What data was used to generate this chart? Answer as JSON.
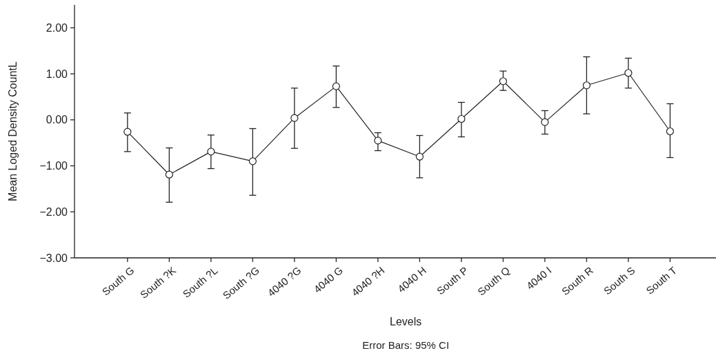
{
  "chart_data": {
    "type": "line",
    "xlabel": "Levels",
    "ylabel": "Mean Loged Density CountL",
    "annotations": [
      "Error Bars: 95% CI"
    ],
    "categories": [
      "South G",
      "South ?K",
      "South ?L",
      "South ?G",
      "4040 ?G",
      "4040 G",
      "4040 ?H",
      "4040 H",
      "South P",
      "South Q",
      "4040 I",
      "South R",
      "South S",
      "South T"
    ],
    "series": [
      {
        "color": "#222222",
        "values": [
          -0.26,
          -1.19,
          -0.69,
          -0.9,
          0.04,
          0.73,
          -0.45,
          -0.8,
          0.02,
          0.84,
          -0.05,
          0.75,
          1.02,
          -0.25
        ],
        "errors": [
          [
            -0.69,
            0.15
          ],
          [
            -1.79,
            -0.61
          ],
          [
            -1.06,
            -0.33
          ],
          [
            -1.64,
            -0.19
          ],
          [
            -0.62,
            0.69
          ],
          [
            0.27,
            1.17
          ],
          [
            -0.67,
            -0.28
          ],
          [
            -1.26,
            -0.34
          ],
          [
            -0.37,
            0.38
          ],
          [
            0.64,
            1.06
          ],
          [
            -0.31,
            0.2
          ],
          [
            0.13,
            1.37
          ],
          [
            0.69,
            1.34
          ],
          [
            -0.82,
            0.35
          ]
        ]
      }
    ],
    "ylim": [
      -3,
      2.5
    ],
    "yticks": [
      {
        "value": -3,
        "label": "−3.00"
      },
      {
        "value": -2,
        "label": "−2.00"
      },
      {
        "value": -1,
        "label": "−1.00"
      },
      {
        "value": 0,
        "label": "0.00"
      },
      {
        "value": 1,
        "label": "1.00"
      },
      {
        "value": 2,
        "label": "2.00"
      }
    ],
    "grid": false,
    "marker": "circle",
    "line_style": "solid"
  }
}
